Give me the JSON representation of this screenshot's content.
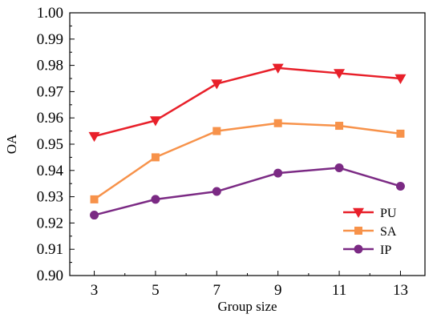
{
  "chart_data": {
    "type": "line",
    "title": "",
    "xlabel": "Group size",
    "ylabel": "OA",
    "x": [
      3,
      5,
      7,
      9,
      11,
      13
    ],
    "xticks": [
      "3",
      "5",
      "7",
      "9",
      "11",
      "13"
    ],
    "xlim": [
      2.2,
      13.8
    ],
    "ylim": [
      0.9,
      1.0
    ],
    "yticks": [
      "0.90",
      "0.91",
      "0.92",
      "0.93",
      "0.94",
      "0.95",
      "0.96",
      "0.97",
      "0.98",
      "0.99",
      "1.00"
    ],
    "grid": false,
    "legend_position": "bottom-right",
    "series": [
      {
        "name": "PU",
        "marker": "triangle-down",
        "color": "#e8202a",
        "values": [
          0.953,
          0.959,
          0.973,
          0.979,
          0.977,
          0.975
        ]
      },
      {
        "name": "SA",
        "marker": "square",
        "color": "#f7924a",
        "values": [
          0.929,
          0.945,
          0.955,
          0.958,
          0.957,
          0.954
        ]
      },
      {
        "name": "IP",
        "marker": "circle",
        "color": "#7b2a84",
        "values": [
          0.923,
          0.929,
          0.932,
          0.939,
          0.941,
          0.934
        ]
      }
    ]
  }
}
